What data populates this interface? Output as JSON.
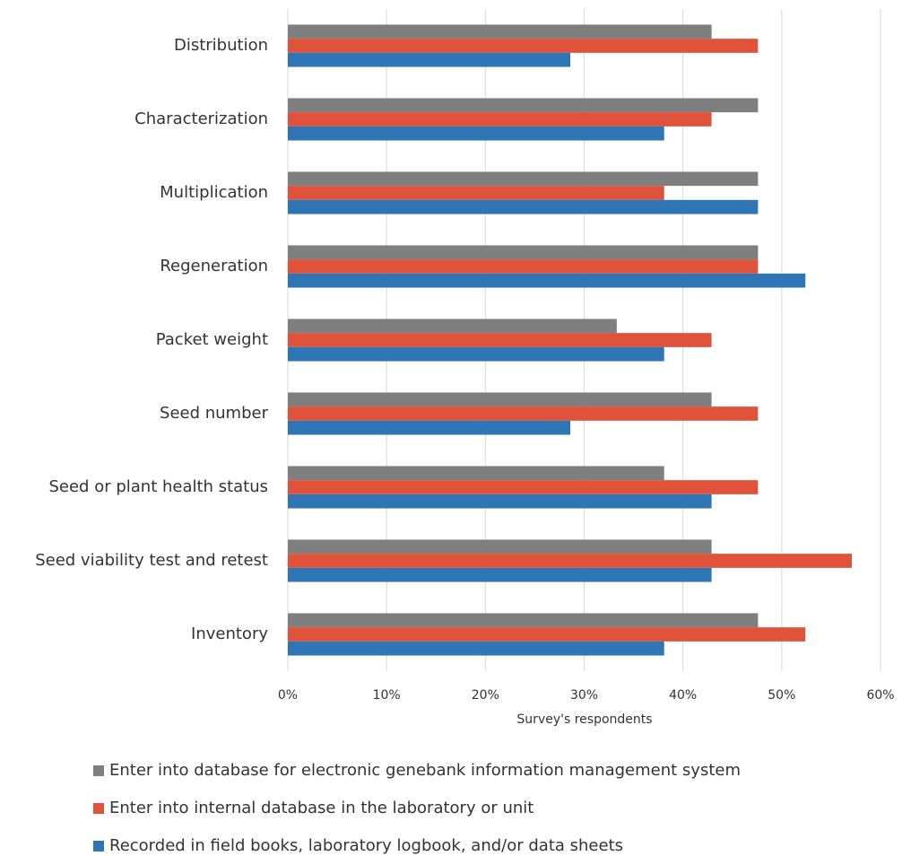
{
  "chart_data": {
    "type": "hbar",
    "xlabel": "Survey's respondents",
    "categories": [
      "Distribution",
      "Characterization",
      "Multiplication",
      "Regeneration",
      "Packet weight",
      "Seed number",
      "Seed or plant health status",
      "Seed viability test and retest",
      "Inventory"
    ],
    "series": [
      {
        "name": "Enter into database for electronic genebank information management system",
        "color": "#7f7f7f",
        "values": [
          42.9,
          47.6,
          47.6,
          47.6,
          33.3,
          42.9,
          38.1,
          42.9,
          47.6
        ]
      },
      {
        "name": "Enter into internal database in the laboratory or unit",
        "color": "#e0533a",
        "values": [
          47.6,
          42.9,
          38.1,
          47.6,
          42.9,
          47.6,
          47.6,
          57.1,
          52.4
        ]
      },
      {
        "name": "Recorded in field books, laboratory logbook, and/or data sheets",
        "color": "#2e75b6",
        "values": [
          28.6,
          38.1,
          47.6,
          52.4,
          38.1,
          28.6,
          42.9,
          42.9,
          38.1
        ]
      }
    ],
    "xlim": [
      0,
      60
    ],
    "xticks": [
      {
        "value": 0,
        "label": "0%"
      },
      {
        "value": 10,
        "label": "10%"
      },
      {
        "value": 20,
        "label": "20%"
      },
      {
        "value": 30,
        "label": "30%"
      },
      {
        "value": 40,
        "label": "40%"
      },
      {
        "value": 50,
        "label": "50%"
      },
      {
        "value": 60,
        "label": "60%"
      }
    ],
    "grid": true
  }
}
